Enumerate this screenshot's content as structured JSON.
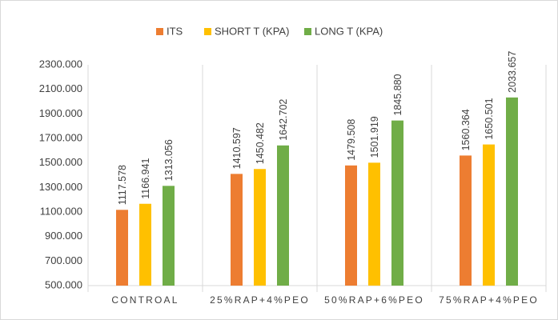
{
  "chart_data": {
    "type": "bar",
    "categories": [
      "CONTROAL",
      "25%RAP+4%PEO",
      "50%RAP+6%PEO",
      "75%RAP+4%PEO"
    ],
    "series": [
      {
        "name": "ITS",
        "color": "#ed7d31",
        "values": [
          1117.578,
          1410.597,
          1479.508,
          1560.364
        ]
      },
      {
        "name": "SHORT T (KPA)",
        "color": "#ffc000",
        "values": [
          1166.941,
          1450.482,
          1501.919,
          1650.501
        ]
      },
      {
        "name": "LONG T (KPA)",
        "color": "#70ad47",
        "values": [
          1313.056,
          1642.702,
          1845.88,
          2033.657
        ],
        "value_labels": [
          "1313.056",
          "1642.702",
          "1845.880",
          "2033.657"
        ]
      }
    ],
    "ylim": [
      500,
      2300
    ],
    "yticks": [
      {
        "value": 500,
        "label": "500.000"
      },
      {
        "value": 700,
        "label": "700.000"
      },
      {
        "value": 900,
        "label": "900.000"
      },
      {
        "value": 1100,
        "label": "1100.000"
      },
      {
        "value": 1300,
        "label": "1300.000"
      },
      {
        "value": 1500,
        "label": "1500.000"
      },
      {
        "value": 1700,
        "label": "1700.000"
      },
      {
        "value": 1900,
        "label": "1900.000"
      },
      {
        "value": 2100,
        "label": "2100.000"
      },
      {
        "value": 2300,
        "label": "2300.000"
      }
    ],
    "grid": false,
    "legend": "top"
  }
}
